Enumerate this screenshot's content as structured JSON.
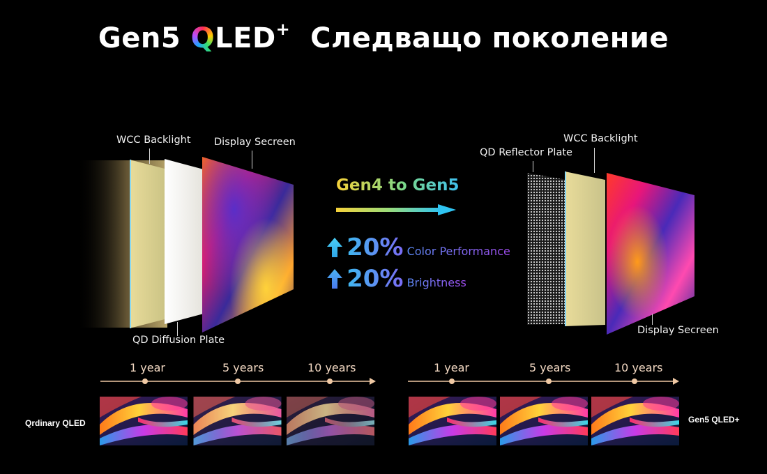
{
  "title": {
    "prefix": "Gen5",
    "q": "Q",
    "led": "LED",
    "plus": "+",
    "subtitle": "Следващо поколение"
  },
  "left_stack": {
    "labels": {
      "wcc": "WCC Backlight",
      "screen": "Display Secreen",
      "diffusion": "QD Diffusion Plate"
    }
  },
  "right_stack": {
    "labels": {
      "wcc": "WCC Backlight",
      "reflector": "QD Reflector Plate",
      "screen": "Display Secreen"
    }
  },
  "center": {
    "gen": "Gen4 to Gen5",
    "stats": [
      {
        "value": "20%",
        "desc": "Color Performance"
      },
      {
        "value": "20%",
        "desc": "Brightness"
      }
    ]
  },
  "timeline": {
    "ticks": [
      "1 year",
      "5 years",
      "10 years"
    ],
    "left_name": "Qrdinary QLED",
    "right_name": "Gen5 QLED+"
  },
  "colors": {
    "axis": "#f0c9a4",
    "accent_blue": "#3fc0f0",
    "accent_yellow": "#f6d23a",
    "accent_purple": "#a24cf0"
  }
}
